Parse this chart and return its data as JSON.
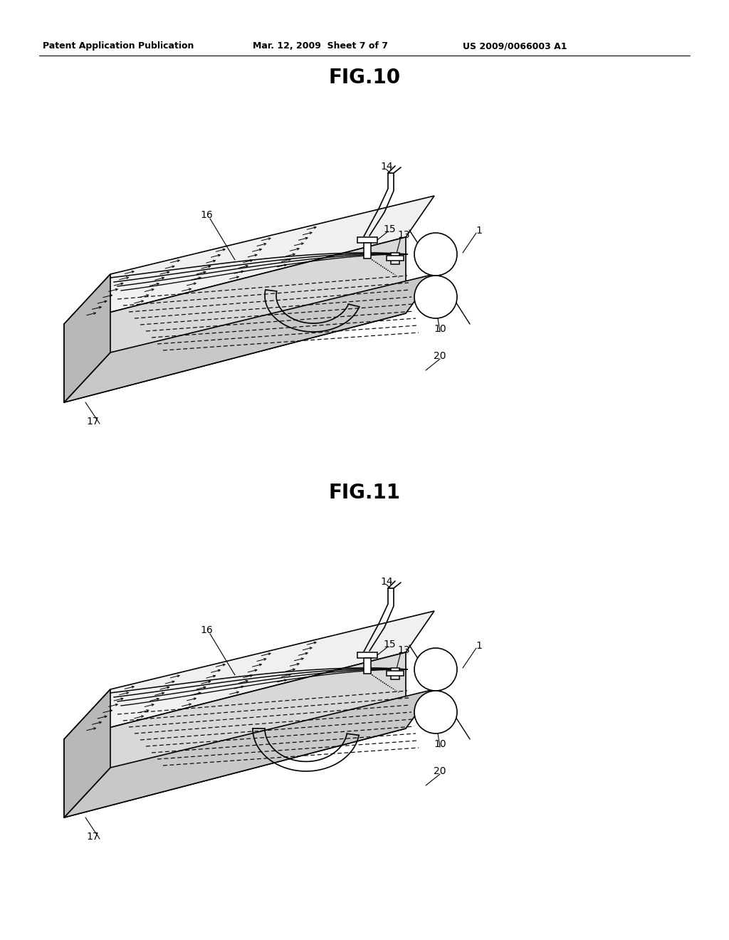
{
  "bg_color": "#ffffff",
  "header_left": "Patent Application Publication",
  "header_mid": "Mar. 12, 2009  Sheet 7 of 7",
  "header_right": "US 2009/0066003 A1",
  "fig10_title": "FIG.10",
  "fig11_title": "FIG.11",
  "line_color": "#000000",
  "label_fontsize": 10,
  "title_fontsize": 20,
  "header_fontsize": 9
}
